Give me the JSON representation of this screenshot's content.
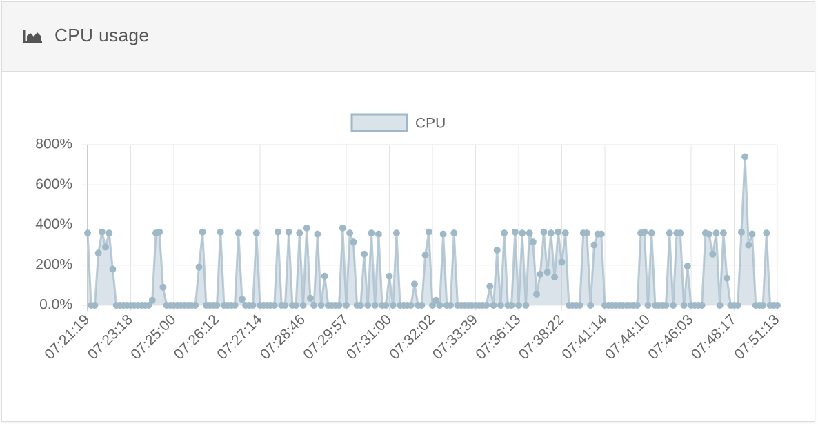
{
  "panel": {
    "title": "CPU usage"
  },
  "chart_data": {
    "type": "area",
    "categories": [
      "07:21:19",
      null,
      null,
      null,
      null,
      null,
      null,
      null,
      null,
      null,
      null,
      null,
      "07:23:18",
      null,
      null,
      null,
      null,
      null,
      null,
      null,
      null,
      null,
      null,
      null,
      "07:25:00",
      null,
      null,
      null,
      null,
      null,
      null,
      null,
      null,
      null,
      null,
      null,
      "07:26:12",
      null,
      null,
      null,
      null,
      null,
      null,
      null,
      null,
      null,
      null,
      null,
      "07:27:14",
      null,
      null,
      null,
      null,
      null,
      null,
      null,
      null,
      null,
      null,
      null,
      "07:28:46",
      null,
      null,
      null,
      null,
      null,
      null,
      null,
      null,
      null,
      null,
      null,
      "07:29:57",
      null,
      null,
      null,
      null,
      null,
      null,
      null,
      null,
      null,
      null,
      null,
      "07:31:00",
      null,
      null,
      null,
      null,
      null,
      null,
      null,
      null,
      null,
      null,
      null,
      "07:32:02",
      null,
      null,
      null,
      null,
      null,
      null,
      null,
      null,
      null,
      null,
      null,
      "07:33:39",
      null,
      null,
      null,
      null,
      null,
      null,
      null,
      null,
      null,
      null,
      null,
      "07:36:13",
      null,
      null,
      null,
      null,
      null,
      null,
      null,
      null,
      null,
      null,
      null,
      "07:38:22",
      null,
      null,
      null,
      null,
      null,
      null,
      null,
      null,
      null,
      null,
      null,
      "07:41:14",
      null,
      null,
      null,
      null,
      null,
      null,
      null,
      null,
      null,
      null,
      null,
      "07:44:10",
      null,
      null,
      null,
      null,
      null,
      null,
      null,
      null,
      null,
      null,
      null,
      "07:46:03",
      null,
      null,
      null,
      null,
      null,
      null,
      null,
      null,
      null,
      null,
      null,
      "07:48:17",
      null,
      null,
      null,
      null,
      null,
      null,
      null,
      null,
      null,
      null,
      null,
      "07:51:13"
    ],
    "series": [
      {
        "name": "CPU",
        "color": "#9fb8c8",
        "values": [
          360,
          0,
          0,
          260,
          365,
          290,
          360,
          180,
          0,
          0,
          0,
          0,
          0,
          0,
          0,
          0,
          0,
          0,
          25,
          360,
          365,
          90,
          0,
          0,
          0,
          0,
          0,
          0,
          0,
          0,
          0,
          190,
          365,
          0,
          0,
          0,
          0,
          365,
          0,
          0,
          0,
          0,
          360,
          30,
          0,
          0,
          0,
          360,
          0,
          0,
          0,
          0,
          0,
          365,
          0,
          0,
          365,
          0,
          0,
          360,
          0,
          385,
          35,
          0,
          355,
          0,
          145,
          0,
          0,
          0,
          0,
          385,
          0,
          360,
          315,
          0,
          0,
          255,
          0,
          360,
          0,
          355,
          0,
          0,
          145,
          0,
          360,
          0,
          0,
          0,
          0,
          105,
          0,
          0,
          250,
          365,
          0,
          25,
          0,
          355,
          0,
          0,
          360,
          0,
          0,
          0,
          0,
          0,
          0,
          0,
          0,
          0,
          95,
          0,
          275,
          0,
          360,
          0,
          0,
          365,
          0,
          360,
          0,
          360,
          315,
          55,
          155,
          365,
          165,
          360,
          140,
          365,
          215,
          360,
          0,
          0,
          0,
          0,
          360,
          360,
          0,
          300,
          355,
          355,
          0,
          0,
          0,
          0,
          0,
          0,
          0,
          0,
          0,
          0,
          360,
          365,
          0,
          360,
          0,
          0,
          0,
          0,
          360,
          0,
          360,
          360,
          0,
          195,
          0,
          0,
          0,
          0,
          360,
          355,
          255,
          360,
          0,
          360,
          135,
          0,
          0,
          0,
          365,
          740,
          300,
          355,
          0,
          0,
          0,
          360,
          0,
          0,
          0
        ]
      }
    ],
    "ylim": [
      0,
      800
    ],
    "yticks": [
      {
        "value": 0,
        "label": "0.0%"
      },
      {
        "value": 200,
        "label": "200%"
      },
      {
        "value": 400,
        "label": "400%"
      },
      {
        "value": 600,
        "label": "600%"
      },
      {
        "value": 800,
        "label": "800%"
      }
    ],
    "grid": true,
    "legend": "top"
  }
}
